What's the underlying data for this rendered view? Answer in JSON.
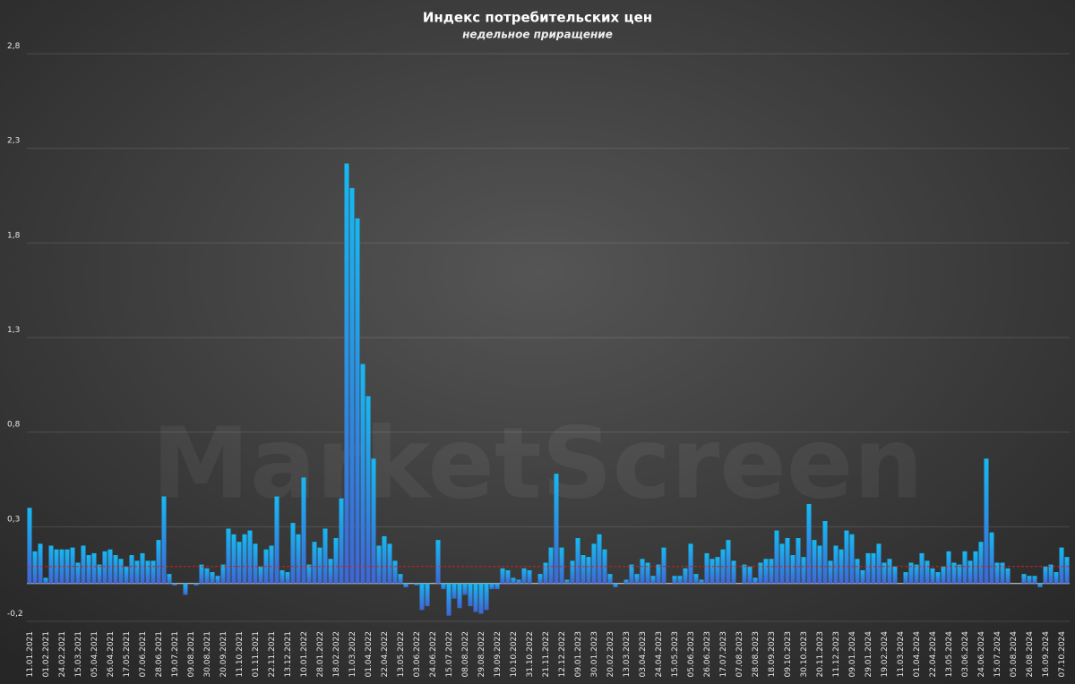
{
  "chart_data": {
    "type": "bar",
    "title": "Индекс потребительских цен",
    "subtitle": "недельное приращение",
    "watermark": "MarketScreen",
    "categories": [
      "11.01.2021",
      null,
      null,
      "01.02.2021",
      null,
      null,
      "24.02.2021",
      null,
      null,
      "15.03.2021",
      null,
      null,
      "05.04.2021",
      null,
      null,
      "26.04.2021",
      null,
      null,
      "17.05.2021",
      null,
      null,
      "07.06.2021",
      null,
      null,
      "28.06.2021",
      null,
      null,
      "19.07.2021",
      null,
      null,
      "09.08.2021",
      null,
      null,
      "30.08.2021",
      null,
      null,
      "20.09.2021",
      null,
      null,
      "11.10.2021",
      null,
      null,
      "01.11.2021",
      null,
      null,
      "22.11.2021",
      null,
      null,
      "13.12.2021",
      null,
      null,
      "10.01.2022",
      null,
      null,
      "28.01.2022",
      null,
      null,
      "18.02.2022",
      null,
      null,
      "11.03.2022",
      null,
      null,
      "01.04.2022",
      null,
      null,
      "22.04.2022",
      null,
      null,
      "13.05.2022",
      null,
      null,
      "03.06.2022",
      null,
      null,
      "24.06.2022",
      null,
      null,
      "15.07.2022",
      null,
      null,
      "08.08.2022",
      null,
      null,
      "29.08.2022",
      null,
      null,
      "19.09.2022",
      null,
      null,
      "10.10.2022",
      null,
      null,
      "31.10.2022",
      null,
      null,
      "21.11.2022",
      null,
      null,
      "12.12.2022",
      null,
      null,
      "09.01.2023",
      null,
      null,
      "30.01.2023",
      null,
      null,
      "20.02.2023",
      null,
      null,
      "13.03.2023",
      null,
      null,
      "03.04.2023",
      null,
      null,
      "24.04.2023",
      null,
      null,
      "15.05.2023",
      null,
      null,
      "05.06.2023",
      null,
      null,
      "26.06.2023",
      null,
      null,
      "17.07.2023",
      null,
      null,
      "07.08.2023",
      null,
      null,
      "28.08.2023",
      null,
      null,
      "18.09.2023",
      null,
      null,
      "09.10.2023",
      null,
      null,
      "30.10.2023",
      null,
      null,
      "20.11.2023",
      null,
      null,
      "11.12.2023",
      null,
      null,
      "09.01.2024",
      null,
      null,
      "29.01.2024",
      null,
      null,
      "19.02.2024",
      null,
      null,
      "11.03.2024",
      null,
      null,
      "01.04.2024",
      null,
      null,
      "22.04.2024",
      null,
      null,
      "13.05.2024",
      null,
      null,
      "03.06.2024",
      null,
      null,
      "24.06.2024",
      null,
      null,
      "15.07.2024",
      null,
      null,
      "05.08.2024",
      null,
      null,
      "26.08.2024",
      null,
      null,
      "16.09.2024",
      null,
      null,
      "07.10.2024",
      null
    ],
    "values": [
      0.4,
      0.17,
      0.21,
      0.03,
      0.2,
      0.18,
      0.18,
      0.18,
      0.19,
      0.11,
      0.2,
      0.15,
      0.16,
      0.1,
      0.17,
      0.18,
      0.15,
      0.13,
      0.09,
      0.15,
      0.12,
      0.16,
      0.12,
      0.12,
      0.23,
      0.46,
      0.05,
      -0.01,
      0.0,
      -0.06,
      0.0,
      -0.01,
      0.1,
      0.08,
      0.06,
      0.04,
      0.1,
      0.29,
      0.26,
      0.22,
      0.26,
      0.28,
      0.21,
      0.09,
      0.18,
      0.2,
      0.46,
      0.07,
      0.06,
      0.32,
      0.26,
      0.56,
      0.1,
      0.22,
      0.19,
      0.29,
      0.13,
      0.24,
      0.45,
      2.22,
      2.09,
      1.93,
      1.16,
      0.99,
      0.66,
      0.2,
      0.25,
      0.21,
      0.12,
      0.05,
      -0.02,
      0.0,
      -0.01,
      -0.14,
      -0.12,
      0.0,
      0.23,
      -0.03,
      -0.17,
      -0.08,
      -0.13,
      -0.06,
      -0.12,
      -0.15,
      -0.16,
      -0.14,
      -0.03,
      -0.03,
      0.08,
      0.07,
      0.03,
      0.02,
      0.08,
      0.07,
      0.0,
      0.05,
      0.11,
      0.19,
      0.58,
      0.19,
      0.02,
      0.12,
      0.24,
      0.15,
      0.14,
      0.21,
      0.26,
      0.18,
      0.05,
      -0.02,
      0.0,
      0.02,
      0.1,
      0.05,
      0.13,
      0.11,
      0.04,
      0.1,
      0.19,
      0.0,
      0.04,
      0.04,
      0.08,
      0.21,
      0.05,
      0.02,
      0.16,
      0.13,
      0.14,
      0.18,
      0.23,
      0.12,
      0.0,
      0.1,
      0.09,
      0.03,
      0.11,
      0.13,
      0.13,
      0.28,
      0.21,
      0.24,
      0.15,
      0.24,
      0.14,
      0.42,
      0.23,
      0.2,
      0.33,
      0.12,
      0.2,
      0.18,
      0.28,
      0.26,
      0.13,
      0.07,
      0.16,
      0.16,
      0.21,
      0.11,
      0.13,
      0.09,
      0.0,
      0.06,
      0.11,
      0.1,
      0.16,
      0.12,
      0.08,
      0.06,
      0.09,
      0.17,
      0.11,
      0.1,
      0.17,
      0.12,
      0.17,
      0.22,
      0.66,
      0.27,
      0.11,
      0.11,
      0.08,
      0.0,
      0.0,
      0.05,
      0.04,
      0.04,
      -0.02,
      0.09,
      0.1,
      0.06,
      0.19,
      0.14
    ],
    "gradient": [
      "#17b8f2",
      "#3f66d2"
    ],
    "ylim": [
      -0.2,
      2.8
    ],
    "yticks": [
      {
        "value": -0.2,
        "label": "-0,2"
      },
      {
        "value": 0.3,
        "label": "0,3"
      },
      {
        "value": 0.8,
        "label": "0,8"
      },
      {
        "value": 1.3,
        "label": "1,3"
      },
      {
        "value": 1.8,
        "label": "1,8"
      },
      {
        "value": 2.3,
        "label": "2,3"
      },
      {
        "value": 2.8,
        "label": "2,8"
      }
    ],
    "grid": true,
    "reference_line": {
      "value": 0.09,
      "color": "#d42020"
    }
  }
}
